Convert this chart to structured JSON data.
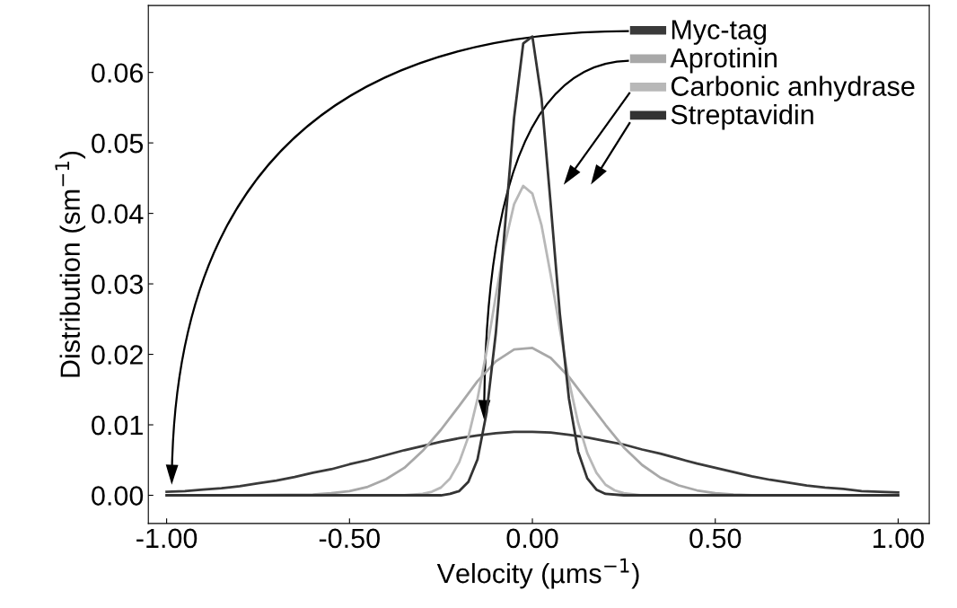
{
  "chart_data": {
    "type": "line",
    "xlabel": "Velocity (µms$^{−1}$)",
    "ylabel": "Distribution (sm$^{−1}$)",
    "xlim": [
      -1.05,
      1.085
    ],
    "ylim": [
      -0.004,
      0.0695
    ],
    "xticks": [
      {
        "value": -1,
        "label": "-1.00"
      },
      {
        "value": -0.5,
        "label": "-0.50"
      },
      {
        "value": 0,
        "label": "0.00"
      },
      {
        "value": 0.5,
        "label": "0.50"
      },
      {
        "value": 1,
        "label": "1.00"
      }
    ],
    "yticks": [
      {
        "value": 0,
        "label": "0.00"
      },
      {
        "value": 0.01,
        "label": "0.01"
      },
      {
        "value": 0.02,
        "label": "0.02"
      },
      {
        "value": 0.03,
        "label": "0.03"
      },
      {
        "value": 0.04,
        "label": "0.04"
      },
      {
        "value": 0.05,
        "label": "0.05"
      },
      {
        "value": 0.06,
        "label": "0.06"
      }
    ],
    "grid": false,
    "legend": "top right",
    "marker": "none",
    "line_style": "solid",
    "series": [
      {
        "name": "Myc-tag",
        "color": "#3a3a3a",
        "x": [
          -1.0,
          -0.95,
          -0.9,
          -0.85,
          -0.8,
          -0.75,
          -0.7,
          -0.65,
          -0.6,
          -0.55,
          -0.5,
          -0.45,
          -0.4,
          -0.35,
          -0.3,
          -0.25,
          -0.2,
          -0.15,
          -0.1,
          -0.05,
          0.0,
          0.05,
          0.1,
          0.15,
          0.2,
          0.25,
          0.3,
          0.35,
          0.4,
          0.45,
          0.5,
          0.55,
          0.6,
          0.65,
          0.7,
          0.75,
          0.8,
          0.85,
          0.9,
          0.95,
          1.0
        ],
        "values": [
          0.0005,
          0.0006,
          0.0008,
          0.001,
          0.0013,
          0.0017,
          0.0021,
          0.0026,
          0.0032,
          0.0037,
          0.0044,
          0.005,
          0.0057,
          0.0064,
          0.007,
          0.0076,
          0.0081,
          0.0085,
          0.0088,
          0.009,
          0.009,
          0.0089,
          0.0086,
          0.0082,
          0.0077,
          0.0072,
          0.0065,
          0.0059,
          0.0052,
          0.0045,
          0.0039,
          0.0033,
          0.0027,
          0.0022,
          0.0018,
          0.0014,
          0.0011,
          0.0009,
          0.0006,
          0.0005,
          0.0004
        ]
      },
      {
        "name": "Aprotinin",
        "color": "#a8a8a8",
        "x": [
          -1.0,
          -0.8,
          -0.6,
          -0.55,
          -0.5,
          -0.45,
          -0.4,
          -0.35,
          -0.3,
          -0.25,
          -0.2,
          -0.15,
          -0.1,
          -0.05,
          0.0,
          0.05,
          0.1,
          0.15,
          0.2,
          0.25,
          0.3,
          0.35,
          0.4,
          0.45,
          0.5,
          0.55,
          0.6,
          0.8,
          1.0
        ],
        "values": [
          0.0,
          0.0,
          0.0001,
          0.0003,
          0.0006,
          0.0012,
          0.0023,
          0.0039,
          0.0063,
          0.0093,
          0.0127,
          0.0162,
          0.019,
          0.0207,
          0.0209,
          0.0195,
          0.0168,
          0.0134,
          0.01,
          0.0068,
          0.0043,
          0.0025,
          0.0014,
          0.0007,
          0.0003,
          0.0001,
          0.0,
          0.0,
          0.0
        ]
      },
      {
        "name": "Carbonic anhydrase",
        "color": "#b8b8b8",
        "x": [
          -1.0,
          -0.6,
          -0.35,
          -0.3,
          -0.275,
          -0.25,
          -0.225,
          -0.2,
          -0.175,
          -0.15,
          -0.125,
          -0.1,
          -0.075,
          -0.05,
          -0.025,
          0.0,
          0.025,
          0.05,
          0.075,
          0.1,
          0.125,
          0.15,
          0.175,
          0.2,
          0.225,
          0.25,
          0.3,
          0.6,
          1.0
        ],
        "values": [
          0.0,
          0.0,
          0.0,
          0.0002,
          0.0005,
          0.0011,
          0.0024,
          0.0047,
          0.0083,
          0.0137,
          0.0205,
          0.0283,
          0.0357,
          0.0413,
          0.0439,
          0.0428,
          0.0383,
          0.0313,
          0.0236,
          0.0162,
          0.0103,
          0.006,
          0.0032,
          0.0015,
          0.0007,
          0.0003,
          0.0,
          0.0,
          0.0
        ]
      },
      {
        "name": "Streptavidin",
        "color": "#333333",
        "x": [
          -1.0,
          -0.6,
          -0.25,
          -0.225,
          -0.2,
          -0.175,
          -0.15,
          -0.125,
          -0.1,
          -0.075,
          -0.05,
          -0.025,
          0.0,
          0.025,
          0.05,
          0.075,
          0.1,
          0.125,
          0.15,
          0.175,
          0.2,
          0.25,
          0.6,
          1.0
        ],
        "values": [
          0.0,
          0.0,
          0.0,
          0.0002,
          0.0006,
          0.0019,
          0.0051,
          0.0118,
          0.023,
          0.0381,
          0.0536,
          0.0641,
          0.0651,
          0.0563,
          0.0413,
          0.0258,
          0.0137,
          0.0062,
          0.0024,
          0.0008,
          0.0002,
          0.0,
          0.0,
          0.0
        ]
      }
    ]
  }
}
